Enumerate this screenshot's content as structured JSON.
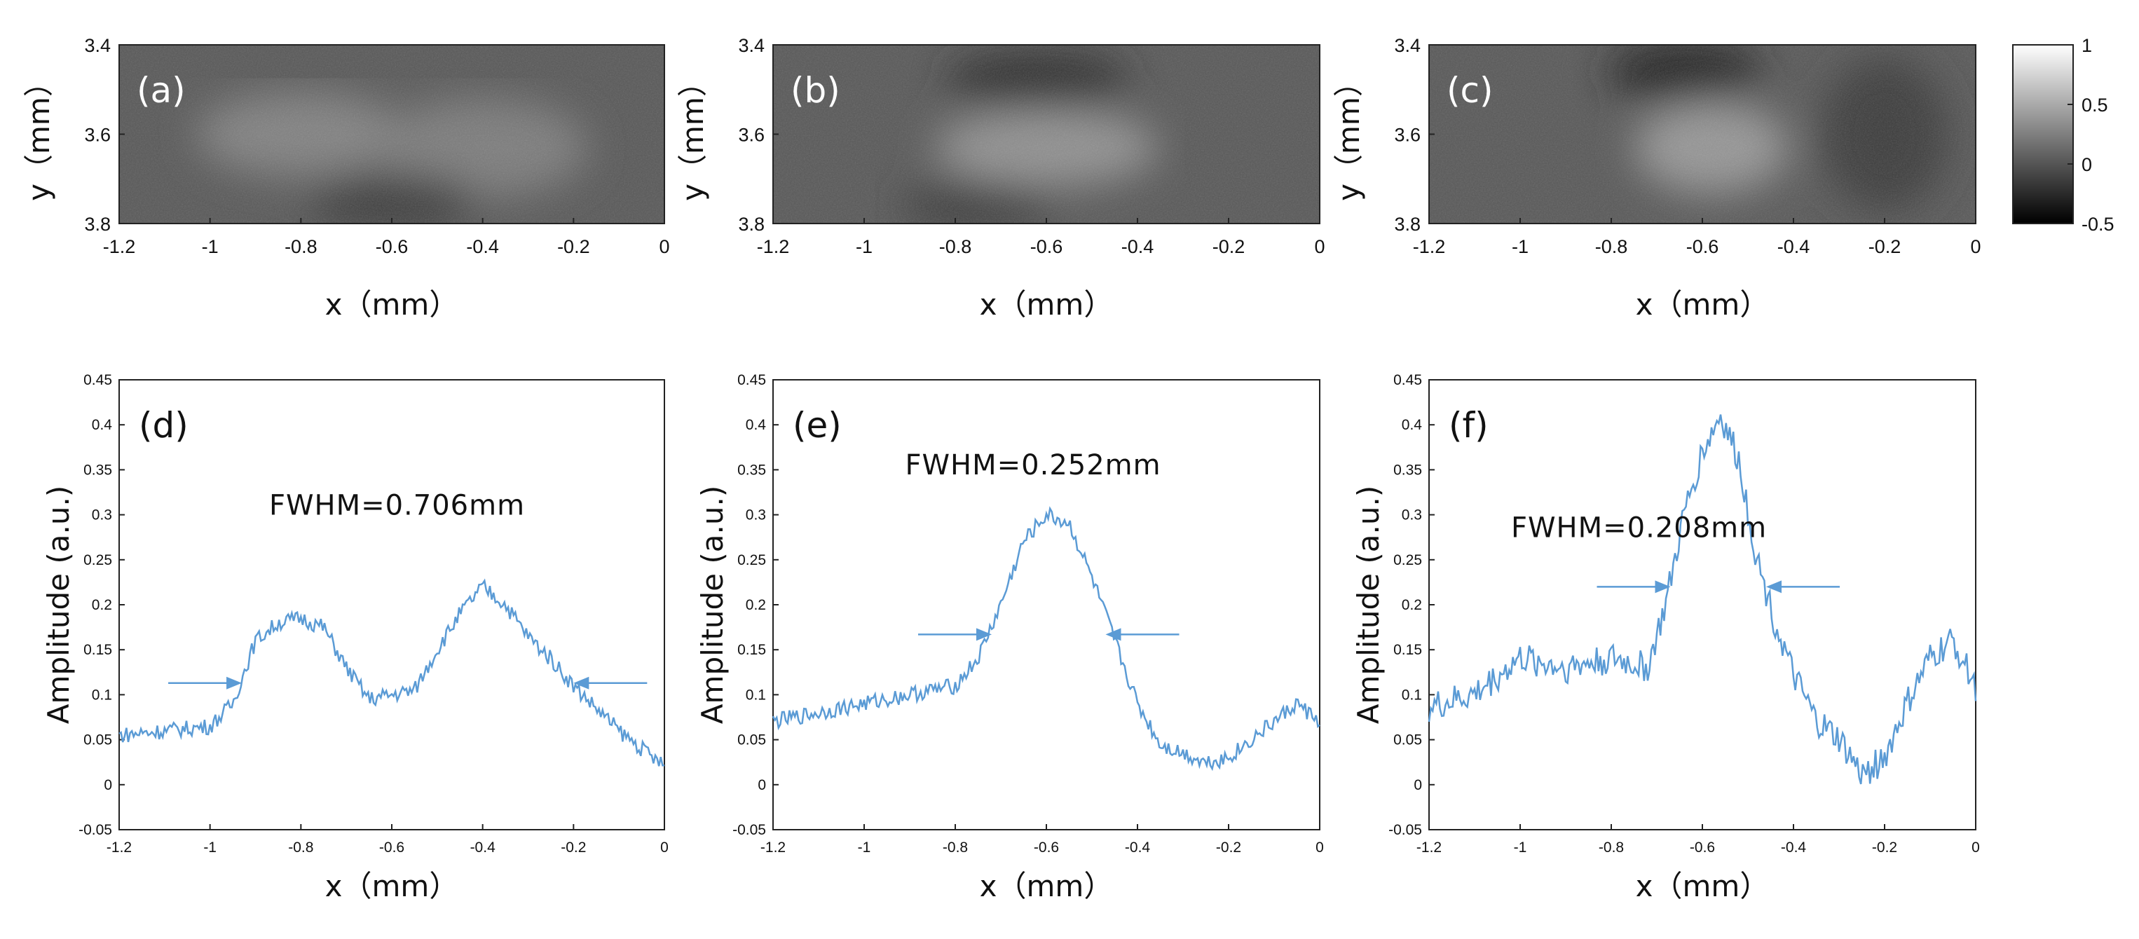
{
  "chart_data": [
    {
      "type": "heatmap",
      "panel": "(a)",
      "xlabel": "x（mm）",
      "ylabel": "y（mm）",
      "xlim": [
        -1.2,
        0
      ],
      "ylim": [
        3.4,
        3.8
      ],
      "xticks": [
        "-1.2",
        "-1",
        "-0.8",
        "-0.6",
        "-0.4",
        "-0.2",
        "0"
      ],
      "yticks": [
        "3.4",
        "3.6",
        "3.8"
      ],
      "description_values": {
        "bright_spots_x": [
          -0.8,
          -0.4
        ],
        "bright_spots_y": [
          3.6,
          3.63
        ]
      }
    },
    {
      "type": "heatmap",
      "panel": "(b)",
      "xlabel": "x（mm）",
      "ylabel": "y（mm）",
      "xlim": [
        -1.2,
        0
      ],
      "ylim": [
        3.4,
        3.8
      ],
      "xticks": [
        "-1.2",
        "-1",
        "-0.8",
        "-0.6",
        "-0.4",
        "-0.2",
        "0"
      ],
      "yticks": [
        "3.4",
        "3.6",
        "3.8"
      ],
      "description_values": {
        "bright_spots_x": [
          -0.6
        ],
        "bright_spots_y": [
          3.63
        ]
      }
    },
    {
      "type": "heatmap",
      "panel": "(c)",
      "xlabel": "x（mm）",
      "ylabel": "y（mm）",
      "xlim": [
        -1.2,
        0
      ],
      "ylim": [
        3.4,
        3.8
      ],
      "xticks": [
        "-1.2",
        "-1",
        "-0.8",
        "-0.6",
        "-0.4",
        "-0.2",
        "0"
      ],
      "yticks": [
        "3.4",
        "3.6",
        "3.8"
      ],
      "colorbar": {
        "range": [
          -0.5,
          1
        ],
        "ticks": [
          "1",
          "0.5",
          "0",
          "-0.5"
        ]
      },
      "description_values": {
        "bright_spots_x": [
          -0.58
        ],
        "bright_spots_y": [
          3.63
        ]
      }
    },
    {
      "type": "line",
      "panel": "(d)",
      "xlabel": "x（mm）",
      "ylabel": "Amplitude (a.u.)",
      "xlim": [
        -1.2,
        0
      ],
      "ylim": [
        -0.05,
        0.45
      ],
      "xticks": [
        "-1.2",
        "-1",
        "-0.8",
        "-0.6",
        "-0.4",
        "-0.2",
        "0"
      ],
      "yticks": [
        "-0.05",
        "0",
        "0.05",
        "0.1",
        "0.15",
        "0.2",
        "0.25",
        "0.3",
        "0.35",
        "0.4",
        "0.45"
      ],
      "annotation": "FWHM=0.706mm",
      "arrows_x": [
        -0.93,
        -0.2
      ],
      "arrow_y": 0.113,
      "x": [
        -1.2,
        -1.1,
        -1.0,
        -0.95,
        -0.9,
        -0.85,
        -0.8,
        -0.75,
        -0.7,
        -0.65,
        -0.6,
        -0.55,
        -0.5,
        -0.45,
        -0.4,
        -0.35,
        -0.3,
        -0.25,
        -0.2,
        -0.15,
        -0.1,
        -0.05,
        0
      ],
      "y": [
        0.055,
        0.06,
        0.065,
        0.09,
        0.16,
        0.18,
        0.185,
        0.175,
        0.13,
        0.095,
        0.1,
        0.105,
        0.15,
        0.19,
        0.22,
        0.2,
        0.165,
        0.14,
        0.11,
        0.085,
        0.06,
        0.04,
        0.02
      ]
    },
    {
      "type": "line",
      "panel": "(e)",
      "xlabel": "x（mm）",
      "ylabel": "Amplitude (a.u.)",
      "xlim": [
        -1.2,
        0
      ],
      "ylim": [
        -0.05,
        0.45
      ],
      "xticks": [
        "-1.2",
        "-1",
        "-0.8",
        "-0.6",
        "-0.4",
        "-0.2",
        "0"
      ],
      "yticks": [
        "-0.05",
        "0",
        "0.05",
        "0.1",
        "0.15",
        "0.2",
        "0.25",
        "0.3",
        "0.35",
        "0.4",
        "0.45"
      ],
      "annotation": "FWHM=0.252mm",
      "arrows_x": [
        -0.72,
        -0.47
      ],
      "arrow_y": 0.167,
      "x": [
        -1.2,
        -1.1,
        -1.0,
        -0.9,
        -0.8,
        -0.75,
        -0.7,
        -0.65,
        -0.6,
        -0.55,
        -0.5,
        -0.45,
        -0.4,
        -0.35,
        -0.3,
        -0.25,
        -0.2,
        -0.15,
        -0.1,
        -0.05,
        0
      ],
      "y": [
        0.07,
        0.08,
        0.09,
        0.1,
        0.11,
        0.14,
        0.2,
        0.27,
        0.3,
        0.29,
        0.23,
        0.16,
        0.09,
        0.045,
        0.035,
        0.025,
        0.03,
        0.05,
        0.07,
        0.09,
        0.07
      ]
    },
    {
      "type": "line",
      "panel": "(f)",
      "xlabel": "x（mm）",
      "ylabel": "Amplitude (a.u.)",
      "xlim": [
        -1.2,
        0
      ],
      "ylim": [
        -0.05,
        0.45
      ],
      "xticks": [
        "-1.2",
        "-1",
        "-0.8",
        "-0.6",
        "-0.4",
        "-0.2",
        "0"
      ],
      "yticks": [
        "-0.05",
        "0",
        "0.05",
        "0.1",
        "0.15",
        "0.2",
        "0.25",
        "0.3",
        "0.35",
        "0.4",
        "0.45"
      ],
      "annotation": "FWHM=0.208mm",
      "arrows_x": [
        -0.67,
        -0.46
      ],
      "arrow_y": 0.22,
      "x": [
        -1.2,
        -1.1,
        -1.0,
        -0.9,
        -0.8,
        -0.72,
        -0.68,
        -0.64,
        -0.6,
        -0.56,
        -0.52,
        -0.48,
        -0.44,
        -0.4,
        -0.35,
        -0.3,
        -0.25,
        -0.2,
        -0.15,
        -0.1,
        -0.05,
        0
      ],
      "y": [
        0.085,
        0.1,
        0.14,
        0.13,
        0.14,
        0.13,
        0.2,
        0.3,
        0.37,
        0.41,
        0.36,
        0.25,
        0.18,
        0.12,
        0.07,
        0.05,
        0.01,
        0.03,
        0.09,
        0.14,
        0.16,
        0.11
      ]
    }
  ]
}
